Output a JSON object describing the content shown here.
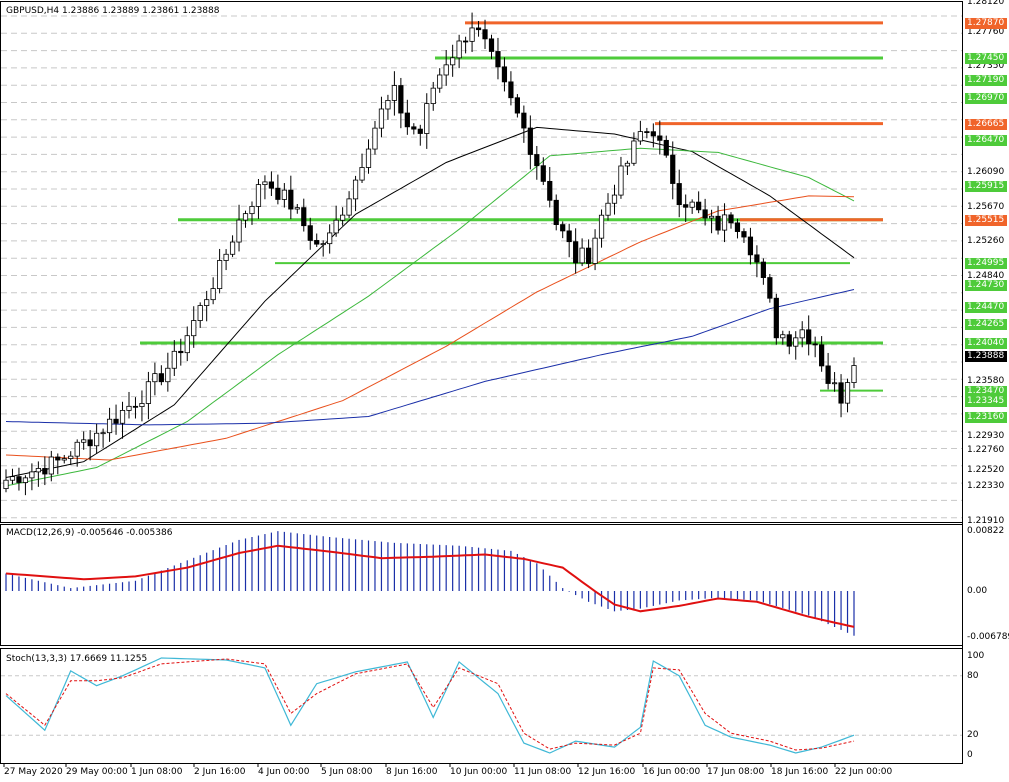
{
  "header": {
    "main": "GBPUSD,H4  1.23886 1.23889 1.23861 1.23888",
    "macd": "MACD(12,26,9) -0.005646 -0.005386",
    "stoch": "Stoch(13,3,3) 17.6669 11.1255"
  },
  "colors": {
    "up_candle": "#ffffff",
    "down_candle": "#000000",
    "ma_black": "#000000",
    "ma_green": "#3cb83c",
    "ma_orange": "#e9501c",
    "ma_blue": "#1a2fa8",
    "level_green": "#4ecb3a",
    "level_orange": "#f0642a",
    "macd_hist": "#1a2fa8",
    "macd_signal": "#e01010",
    "stoch_main": "#3fb8d6",
    "stoch_signal": "#e01010",
    "grid": "#c8c8c8"
  },
  "price_axis": {
    "ticks": [
      "1.28120",
      "1.27760",
      "1.27350",
      "1.26970",
      "1.26090",
      "1.25670",
      "1.25260",
      "1.24840",
      "1.24470",
      "1.23580",
      "1.22930",
      "1.22760",
      "1.22520",
      "1.22330",
      "1.21910"
    ],
    "current_price": "1.23888"
  },
  "levels": [
    {
      "price": 1.2787,
      "label": "1.27870",
      "color": "orange"
    },
    {
      "price": 1.2745,
      "label": "1.27450",
      "color": "green"
    },
    {
      "price": 1.2719,
      "label": "1.27190",
      "color": "green"
    },
    {
      "price": 1.2697,
      "label": "1.26970",
      "color": "green"
    },
    {
      "price": 1.26665,
      "label": "1.26665",
      "color": "orange"
    },
    {
      "price": 1.2647,
      "label": "1.26470",
      "color": "green"
    },
    {
      "price": 1.25915,
      "label": "1.25915",
      "color": "green"
    },
    {
      "price": 1.25515,
      "label": "1.25515",
      "color": "orange"
    },
    {
      "price": 1.24995,
      "label": "1.24995",
      "color": "green"
    },
    {
      "price": 1.2473,
      "label": "1.24730",
      "color": "green"
    },
    {
      "price": 1.2447,
      "label": "1.24470",
      "color": "green"
    },
    {
      "price": 1.24265,
      "label": "1.24265",
      "color": "green"
    },
    {
      "price": 1.2404,
      "label": "1.24040",
      "color": "green"
    },
    {
      "price": 1.2347,
      "label": "1.23470",
      "color": "green"
    },
    {
      "price": 1.23345,
      "label": "1.23345",
      "color": "green"
    },
    {
      "price": 1.2316,
      "label": "1.23160",
      "color": "green"
    }
  ],
  "macd_axis": [
    "0.00822",
    "0.00",
    "-0.006789"
  ],
  "stoch_axis": [
    "100",
    "80",
    "20",
    "0"
  ],
  "time_axis": [
    "27 May 2020",
    "29 May 00:00",
    "1 Jun 08:00",
    "2 Jun 16:00",
    "4 Jun 00:00",
    "5 Jun 08:00",
    "8 Jun 16:00",
    "10 Jun 00:00",
    "11 Jun 08:00",
    "12 Jun 16:00",
    "16 Jun 00:00",
    "17 Jun 08:00",
    "18 Jun 16:00",
    "22 Jun 00:00"
  ],
  "chart_data": {
    "type": "candlestick",
    "symbol": "GBPUSD",
    "timeframe": "H4",
    "ylim": [
      1.2191,
      1.2812
    ],
    "close_path": [
      [
        0,
        1.224
      ],
      [
        8,
        1.2262
      ],
      [
        14,
        1.2296
      ],
      [
        18,
        1.2322
      ],
      [
        22,
        1.2348
      ],
      [
        26,
        1.2384
      ],
      [
        30,
        1.2445
      ],
      [
        33,
        1.2492
      ],
      [
        36,
        1.255
      ],
      [
        40,
        1.26
      ],
      [
        44,
        1.257
      ],
      [
        46,
        1.2545
      ],
      [
        48,
        1.252
      ],
      [
        50,
        1.253
      ],
      [
        52,
        1.2565
      ],
      [
        54,
        1.26
      ],
      [
        56,
        1.2646
      ],
      [
        58,
        1.268
      ],
      [
        60,
        1.2702
      ],
      [
        62,
        1.2664
      ],
      [
        64,
        1.2656
      ],
      [
        66,
        1.271
      ],
      [
        68,
        1.2742
      ],
      [
        70,
        1.276
      ],
      [
        72,
        1.2786
      ],
      [
        74,
        1.276
      ],
      [
        76,
        1.2725
      ],
      [
        78,
        1.2692
      ],
      [
        80,
        1.266
      ],
      [
        82,
        1.262
      ],
      [
        84,
        1.2581
      ],
      [
        85,
        1.2548
      ],
      [
        87,
        1.252
      ],
      [
        88,
        1.2505
      ],
      [
        90,
        1.251
      ],
      [
        92,
        1.2555
      ],
      [
        94,
        1.259
      ],
      [
        96,
        1.262
      ],
      [
        98,
        1.2655
      ],
      [
        100,
        1.266
      ],
      [
        102,
        1.262
      ],
      [
        104,
        1.258
      ],
      [
        106,
        1.2568
      ],
      [
        108,
        1.255
      ],
      [
        110,
        1.2545
      ],
      [
        112,
        1.2555
      ],
      [
        114,
        1.254
      ],
      [
        116,
        1.25
      ],
      [
        118,
        1.245
      ],
      [
        119,
        1.2418
      ],
      [
        121,
        1.241
      ],
      [
        123,
        1.242
      ],
      [
        125,
        1.2405
      ],
      [
        127,
        1.236
      ],
      [
        129,
        1.234
      ],
      [
        131,
        1.2388
      ]
    ],
    "moving_averages": [
      {
        "color": "black",
        "points": [
          [
            0,
            1.2243
          ],
          [
            12,
            1.2262
          ],
          [
            26,
            1.233
          ],
          [
            40,
            1.2454
          ],
          [
            54,
            1.2558
          ],
          [
            68,
            1.262
          ],
          [
            82,
            1.2662
          ],
          [
            94,
            1.2654
          ],
          [
            106,
            1.2633
          ],
          [
            118,
            1.258
          ],
          [
            131,
            1.2506
          ]
        ]
      },
      {
        "color": "green",
        "points": [
          [
            0,
            1.2233
          ],
          [
            14,
            1.2255
          ],
          [
            28,
            1.231
          ],
          [
            42,
            1.239
          ],
          [
            56,
            1.246
          ],
          [
            70,
            1.254
          ],
          [
            84,
            1.2628
          ],
          [
            98,
            1.2637
          ],
          [
            110,
            1.2632
          ],
          [
            124,
            1.2602
          ],
          [
            131,
            1.2574
          ]
        ]
      },
      {
        "color": "orange",
        "points": [
          [
            0,
            1.227
          ],
          [
            16,
            1.2264
          ],
          [
            34,
            1.229
          ],
          [
            52,
            1.2335
          ],
          [
            68,
            1.24
          ],
          [
            82,
            1.2465
          ],
          [
            98,
            1.2525
          ],
          [
            110,
            1.2562
          ],
          [
            124,
            1.258
          ],
          [
            131,
            1.2579
          ]
        ]
      },
      {
        "color": "blue",
        "points": [
          [
            0,
            1.231
          ],
          [
            22,
            1.2306
          ],
          [
            40,
            1.2308
          ],
          [
            56,
            1.2316
          ],
          [
            74,
            1.2358
          ],
          [
            92,
            1.239
          ],
          [
            106,
            1.2412
          ],
          [
            118,
            1.2445
          ],
          [
            131,
            1.2468
          ]
        ]
      }
    ],
    "macd": {
      "histogram_path": [
        [
          0,
          0.0024
        ],
        [
          10,
          0.0004
        ],
        [
          20,
          0.0014
        ],
        [
          28,
          0.0042
        ],
        [
          36,
          0.007
        ],
        [
          42,
          0.0082
        ],
        [
          50,
          0.0074
        ],
        [
          60,
          0.0066
        ],
        [
          70,
          0.0062
        ],
        [
          78,
          0.0055
        ],
        [
          82,
          0.0038
        ],
        [
          86,
          0.0004
        ],
        [
          90,
          -0.0016
        ],
        [
          94,
          -0.003
        ],
        [
          98,
          -0.0026
        ],
        [
          104,
          -0.0014
        ],
        [
          110,
          -0.001
        ],
        [
          116,
          -0.0014
        ],
        [
          124,
          -0.0036
        ],
        [
          131,
          -0.0066
        ]
      ],
      "signal_path": [
        [
          0,
          0.0024
        ],
        [
          6,
          0.002
        ],
        [
          12,
          0.0016
        ],
        [
          20,
          0.002
        ],
        [
          28,
          0.0032
        ],
        [
          36,
          0.0052
        ],
        [
          42,
          0.0062
        ],
        [
          50,
          0.0054
        ],
        [
          58,
          0.0045
        ],
        [
          66,
          0.0047
        ],
        [
          74,
          0.005
        ],
        [
          80,
          0.0044
        ],
        [
          86,
          0.0032
        ],
        [
          90,
          0.0006
        ],
        [
          94,
          -0.002
        ],
        [
          98,
          -0.003
        ],
        [
          104,
          -0.0022
        ],
        [
          110,
          -0.0011
        ],
        [
          116,
          -0.0016
        ],
        [
          124,
          -0.0038
        ],
        [
          131,
          -0.0053
        ]
      ]
    },
    "stochastic": {
      "main_path": [
        [
          0,
          60
        ],
        [
          6,
          25
        ],
        [
          10,
          85
        ],
        [
          14,
          70
        ],
        [
          18,
          80
        ],
        [
          24,
          98
        ],
        [
          34,
          96
        ],
        [
          40,
          88
        ],
        [
          44,
          30
        ],
        [
          48,
          72
        ],
        [
          54,
          84
        ],
        [
          62,
          94
        ],
        [
          66,
          38
        ],
        [
          70,
          94
        ],
        [
          76,
          62
        ],
        [
          80,
          12
        ],
        [
          84,
          2
        ],
        [
          88,
          14
        ],
        [
          94,
          8
        ],
        [
          98,
          28
        ],
        [
          100,
          95
        ],
        [
          104,
          80
        ],
        [
          108,
          30
        ],
        [
          112,
          18
        ],
        [
          118,
          10
        ],
        [
          122,
          2
        ],
        [
          126,
          8
        ],
        [
          131,
          20
        ]
      ],
      "signal_path": [
        [
          0,
          62
        ],
        [
          6,
          30
        ],
        [
          10,
          75
        ],
        [
          14,
          75
        ],
        [
          18,
          78
        ],
        [
          24,
          92
        ],
        [
          34,
          97
        ],
        [
          40,
          92
        ],
        [
          44,
          42
        ],
        [
          48,
          62
        ],
        [
          54,
          82
        ],
        [
          62,
          92
        ],
        [
          66,
          48
        ],
        [
          70,
          88
        ],
        [
          76,
          72
        ],
        [
          80,
          22
        ],
        [
          84,
          6
        ],
        [
          88,
          12
        ],
        [
          94,
          10
        ],
        [
          98,
          22
        ],
        [
          100,
          88
        ],
        [
          104,
          86
        ],
        [
          108,
          42
        ],
        [
          112,
          22
        ],
        [
          118,
          14
        ],
        [
          122,
          5
        ],
        [
          126,
          7
        ],
        [
          131,
          14
        ]
      ]
    }
  }
}
